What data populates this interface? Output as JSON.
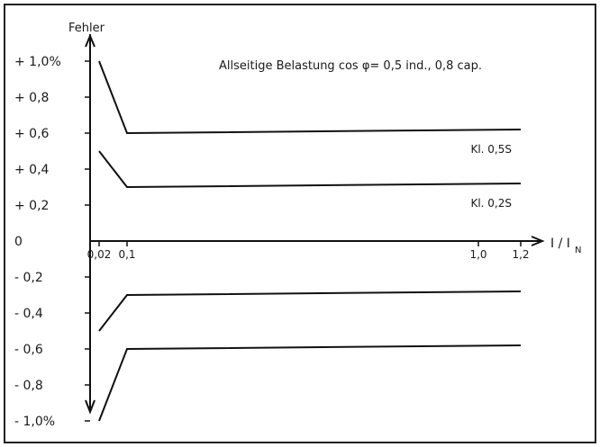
{
  "chart_data": {
    "type": "line",
    "title": "Allseitige Belastung cos φ= 0,5 ind., 0,8 cap.",
    "ylabel": "Fehler",
    "xlabel_main": "I / I",
    "xlabel_sub": "N",
    "y_ticks": [
      {
        "value": 1.0,
        "label": "+ 1,0%"
      },
      {
        "value": 0.8,
        "label": "+ 0,8"
      },
      {
        "value": 0.6,
        "label": "+ 0,6"
      },
      {
        "value": 0.4,
        "label": "+ 0,4"
      },
      {
        "value": 0.2,
        "label": "+ 0,2"
      },
      {
        "value": 0.0,
        "label": "0"
      },
      {
        "value": -0.2,
        "label": "- 0,2"
      },
      {
        "value": -0.4,
        "label": "- 0,4"
      },
      {
        "value": -0.6,
        "label": "- 0,6"
      },
      {
        "value": -0.8,
        "label": "- 0,8"
      },
      {
        "value": -1.0,
        "label": "- 1,0%"
      }
    ],
    "x_ticks": [
      {
        "value": 0.02,
        "label": "0,02"
      },
      {
        "value": 0.1,
        "label": "0,1"
      },
      {
        "value": 1.0,
        "label": "1,0"
      },
      {
        "value": 1.2,
        "label": "1,2"
      }
    ],
    "ylim": [
      -1.0,
      1.0
    ],
    "grid": false,
    "series": [
      {
        "name": "Kl. 0,5S",
        "x": [
          0.02,
          0.1,
          1.2
        ],
        "y": [
          1.0,
          0.6,
          0.62
        ]
      },
      {
        "name": "Kl. 0,2S",
        "x": [
          0.02,
          0.1,
          1.2
        ],
        "y": [
          0.5,
          0.3,
          0.32
        ]
      },
      {
        "x": [
          0.02,
          0.1,
          1.2
        ],
        "y": [
          -0.5,
          -0.3,
          -0.28
        ]
      },
      {
        "x": [
          0.02,
          0.1,
          1.2
        ],
        "y": [
          -1.0,
          -0.6,
          -0.58
        ]
      }
    ]
  }
}
